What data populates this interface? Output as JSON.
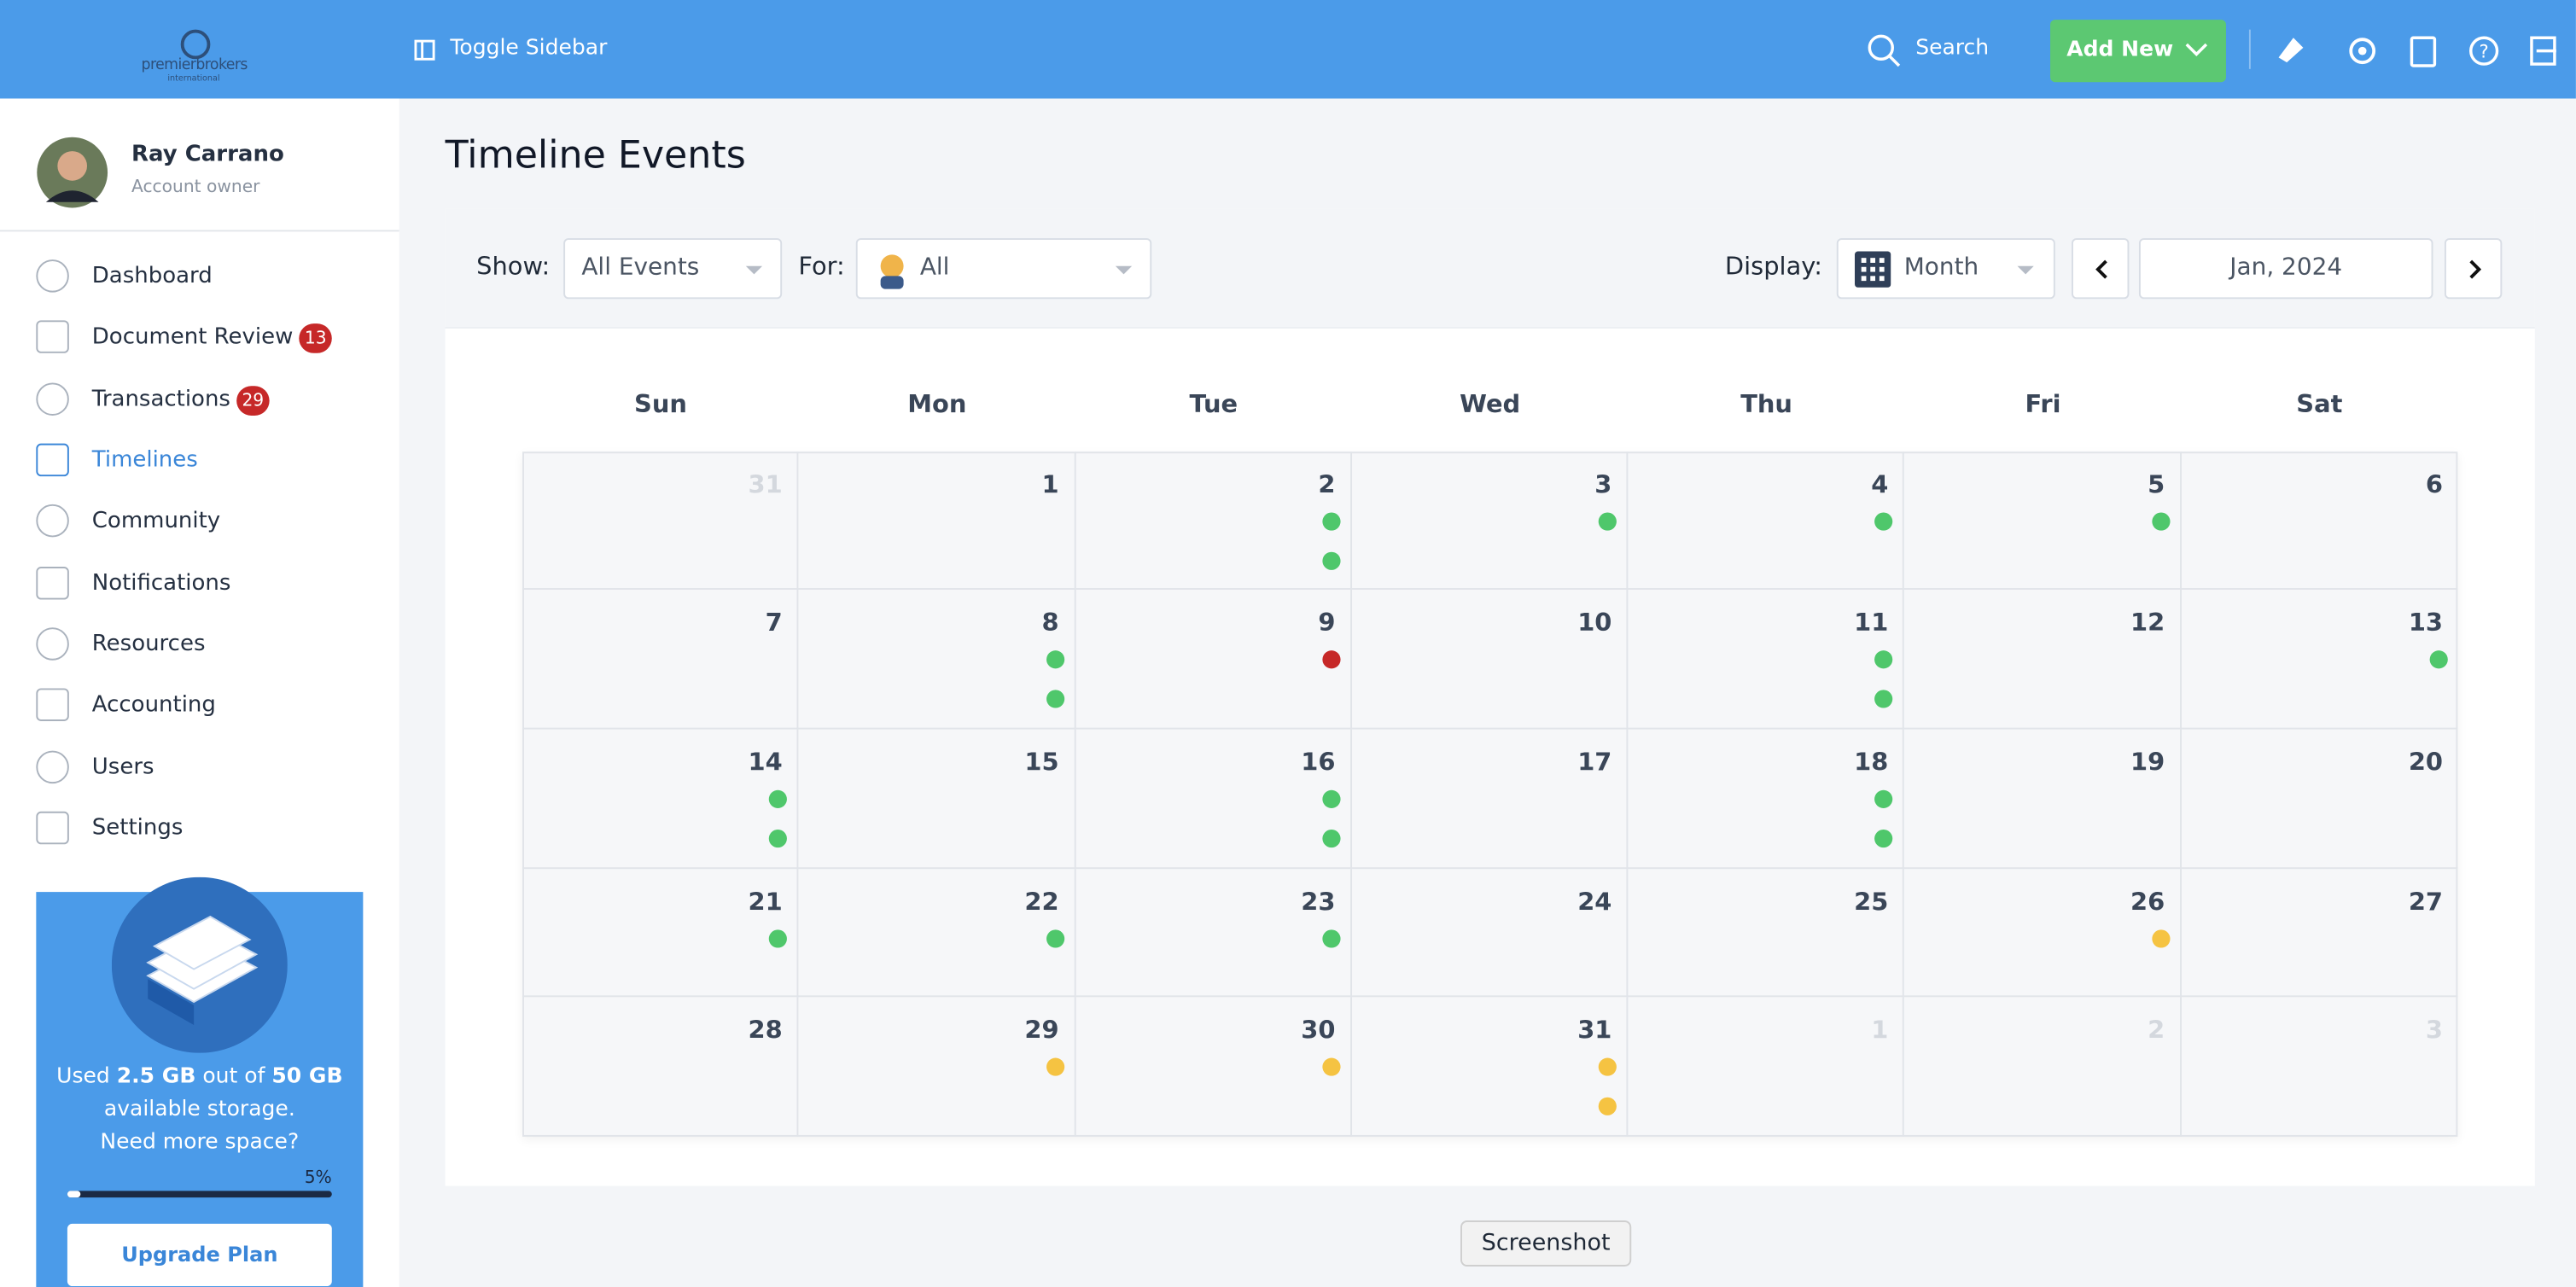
{
  "header": {
    "logo": "premierbrokers",
    "logo_sub": "international",
    "toggle": "Toggle Sidebar",
    "search": "Search",
    "add_new": "Add New"
  },
  "user": {
    "name": "Ray Carrano",
    "role": "Account owner"
  },
  "nav": [
    {
      "label": "Dashboard"
    },
    {
      "label": "Document Review",
      "badge": 13
    },
    {
      "label": "Transactions",
      "badge": 29
    },
    {
      "label": "Timelines",
      "active": true
    },
    {
      "label": "Community"
    },
    {
      "label": "Notifications"
    },
    {
      "label": "Resources"
    },
    {
      "label": "Accounting"
    },
    {
      "label": "Users"
    },
    {
      "label": "Settings"
    }
  ],
  "storage": {
    "used_prefix": "Used",
    "used": "2.5 GB",
    "middle": "out of",
    "total": "50 GB",
    "suffix": "available storage.",
    "question": "Need more space?",
    "percent": {
      "value": 5,
      "label": "5%"
    },
    "button": "Upgrade Plan"
  },
  "page_title": "Timeline Events",
  "filters": {
    "show_label": "Show:",
    "show": "All Events",
    "for_label": "For:",
    "for": "All",
    "display_label": "Display:",
    "display": "Month",
    "period": "Jan, 2024"
  },
  "calendar": {
    "event_colors": {
      "green": "#4fc76b",
      "red": "#c62828",
      "yellow": "#f5c342"
    },
    "weekdays": [
      "Sun",
      "Mon",
      "Tue",
      "Wed",
      "Thu",
      "Fri",
      "Sat"
    ],
    "weeks": [
      [
        {
          "day": 31,
          "muted": true,
          "events": []
        },
        {
          "day": 1,
          "events": []
        },
        {
          "day": 2,
          "events": [
            "green",
            "green"
          ]
        },
        {
          "day": 3,
          "events": [
            "green"
          ]
        },
        {
          "day": 4,
          "events": [
            "green"
          ]
        },
        {
          "day": 5,
          "events": [
            "green"
          ]
        },
        {
          "day": 6,
          "events": []
        }
      ],
      [
        {
          "day": 7,
          "events": []
        },
        {
          "day": 8,
          "events": [
            "green",
            "green"
          ]
        },
        {
          "day": 9,
          "events": [
            "red"
          ]
        },
        {
          "day": 10,
          "events": []
        },
        {
          "day": 11,
          "events": [
            "green",
            "green"
          ]
        },
        {
          "day": 12,
          "events": []
        },
        {
          "day": 13,
          "events": [
            "green"
          ]
        }
      ],
      [
        {
          "day": 14,
          "events": [
            "green",
            "green"
          ]
        },
        {
          "day": 15,
          "events": []
        },
        {
          "day": 16,
          "events": [
            "green",
            "green"
          ]
        },
        {
          "day": 17,
          "events": []
        },
        {
          "day": 18,
          "events": [
            "green",
            "green"
          ]
        },
        {
          "day": 19,
          "events": []
        },
        {
          "day": 20,
          "events": []
        }
      ],
      [
        {
          "day": 21,
          "events": [
            "green"
          ]
        },
        {
          "day": 22,
          "events": [
            "green"
          ]
        },
        {
          "day": 23,
          "events": [
            "green"
          ]
        },
        {
          "day": 24,
          "events": []
        },
        {
          "day": 25,
          "events": []
        },
        {
          "day": 26,
          "events": [
            "yellow"
          ]
        },
        {
          "day": 27,
          "events": []
        }
      ],
      [
        {
          "day": 28,
          "events": []
        },
        {
          "day": 29,
          "events": [
            "yellow"
          ]
        },
        {
          "day": 30,
          "events": [
            "yellow"
          ]
        },
        {
          "day": 31,
          "events": [
            "yellow",
            "yellow"
          ]
        },
        {
          "day": 1,
          "muted": true,
          "events": []
        },
        {
          "day": 2,
          "muted": true,
          "events": []
        },
        {
          "day": 3,
          "muted": true,
          "events": []
        }
      ]
    ]
  },
  "tooltip": "Screenshot"
}
